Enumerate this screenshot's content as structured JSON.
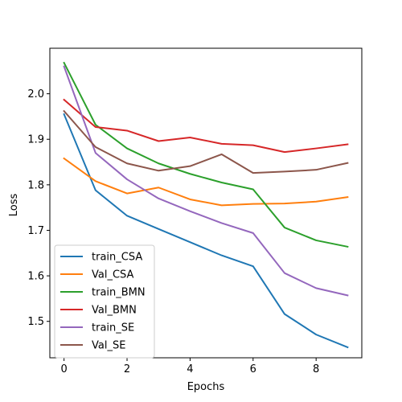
{
  "chart_data": {
    "type": "line",
    "xlabel": "Epochs",
    "ylabel": "Loss",
    "xlim": [
      -0.45,
      9.45
    ],
    "ylim": [
      1.42,
      2.1
    ],
    "xticks": [
      0,
      2,
      4,
      6,
      8
    ],
    "yticks": [
      1.5,
      1.6,
      1.7,
      1.8,
      1.9,
      2.0
    ],
    "x": [
      0,
      1,
      2,
      3,
      4,
      5,
      6,
      7,
      8,
      9
    ],
    "legend_position": "lower-left",
    "grid": false,
    "series": [
      {
        "name": "train_CSA",
        "color": "#1f77b4",
        "values": [
          1.955,
          1.788,
          1.732,
          1.703,
          1.674,
          1.645,
          1.621,
          1.516,
          1.471,
          1.443
        ]
      },
      {
        "name": "Val_CSA",
        "color": "#ff7f0e",
        "values": [
          1.858,
          1.808,
          1.781,
          1.794,
          1.768,
          1.755,
          1.758,
          1.759,
          1.763,
          1.773
        ]
      },
      {
        "name": "train_BMN",
        "color": "#2ca02c",
        "values": [
          2.068,
          1.932,
          1.88,
          1.847,
          1.824,
          1.805,
          1.79,
          1.706,
          1.678,
          1.664
        ]
      },
      {
        "name": "Val_BMN",
        "color": "#d62728",
        "values": [
          1.987,
          1.927,
          1.919,
          1.896,
          1.904,
          1.89,
          1.887,
          1.872,
          1.88,
          1.889
        ]
      },
      {
        "name": "train_SE",
        "color": "#9467bd",
        "values": [
          2.06,
          1.87,
          1.812,
          1.77,
          1.742,
          1.716,
          1.694,
          1.606,
          1.573,
          1.557
        ]
      },
      {
        "name": "Val_SE",
        "color": "#8c564b",
        "values": [
          1.962,
          1.883,
          1.847,
          1.831,
          1.841,
          1.867,
          1.826,
          1.829,
          1.833,
          1.848
        ]
      }
    ]
  }
}
